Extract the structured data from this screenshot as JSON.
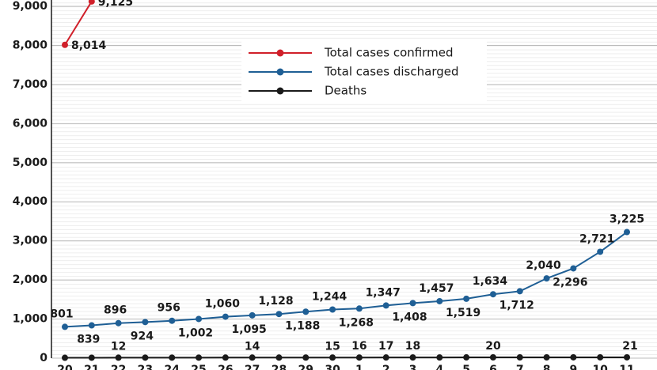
{
  "chart_data": {
    "type": "line",
    "categories": [
      "20",
      "21",
      "22",
      "23",
      "24",
      "25",
      "26",
      "27",
      "28",
      "29",
      "30",
      "1",
      "2",
      "3",
      "4",
      "5",
      "6",
      "7",
      "8",
      "9",
      "10",
      "11"
    ],
    "series": [
      {
        "name": "Total cases confirmed",
        "color": "#d0202a",
        "values": [
          8014,
          9125,
          null,
          null,
          null,
          null,
          null,
          null,
          null,
          null,
          null,
          null,
          null,
          null,
          null,
          null,
          null,
          null,
          null,
          null,
          null,
          null
        ],
        "value_labels": [
          "8,014",
          "9,125",
          null,
          null,
          null,
          null,
          null,
          null,
          null,
          null,
          null,
          null,
          null,
          null,
          null,
          null,
          null,
          null,
          null,
          null,
          null,
          null
        ]
      },
      {
        "name": "Total cases discharged",
        "color": "#1f5f95",
        "values": [
          801,
          839,
          896,
          924,
          956,
          1002,
          1060,
          1095,
          1128,
          1188,
          1244,
          1268,
          1347,
          1408,
          1457,
          1519,
          1634,
          1712,
          2040,
          2296,
          2721,
          3225
        ],
        "value_labels": [
          "801",
          "839",
          "896",
          "924",
          "956",
          "1,002",
          "1,060",
          "1,095",
          "1,128",
          "1,188",
          "1,244",
          "1,268",
          "1,347",
          "1,408",
          "1,457",
          "1,519",
          "1,634",
          "1,712",
          "2,040",
          "2,296",
          "2,721",
          "3,225"
        ]
      },
      {
        "name": "Deaths",
        "color": "#1a1a1a",
        "values": [
          9,
          11,
          12,
          13,
          13,
          13,
          14,
          14,
          14,
          15,
          15,
          16,
          17,
          18,
          18,
          19,
          20,
          20,
          20,
          21,
          21,
          21
        ],
        "value_labels": [
          null,
          null,
          "12",
          null,
          null,
          null,
          null,
          "14",
          null,
          null,
          "15",
          "16",
          "17",
          "18",
          null,
          null,
          "20",
          null,
          null,
          null,
          null,
          "21"
        ]
      }
    ],
    "ylim": [
      0,
      9000
    ],
    "yticks": [
      0,
      {
        "value": 1000,
        "label": "1,000"
      },
      {
        "value": 2000,
        "label": "2,000"
      },
      {
        "value": 3000,
        "label": "3,000"
      },
      {
        "value": 4000,
        "label": "4,000"
      },
      {
        "value": 5000,
        "label": "5,000"
      },
      {
        "value": 6000,
        "label": "6,000"
      },
      {
        "value": 7000,
        "label": "7,000"
      },
      {
        "value": 8000,
        "label": "8,000"
      },
      {
        "value": 9000,
        "label": "9,000"
      }
    ],
    "grid": true,
    "legend": "top"
  }
}
